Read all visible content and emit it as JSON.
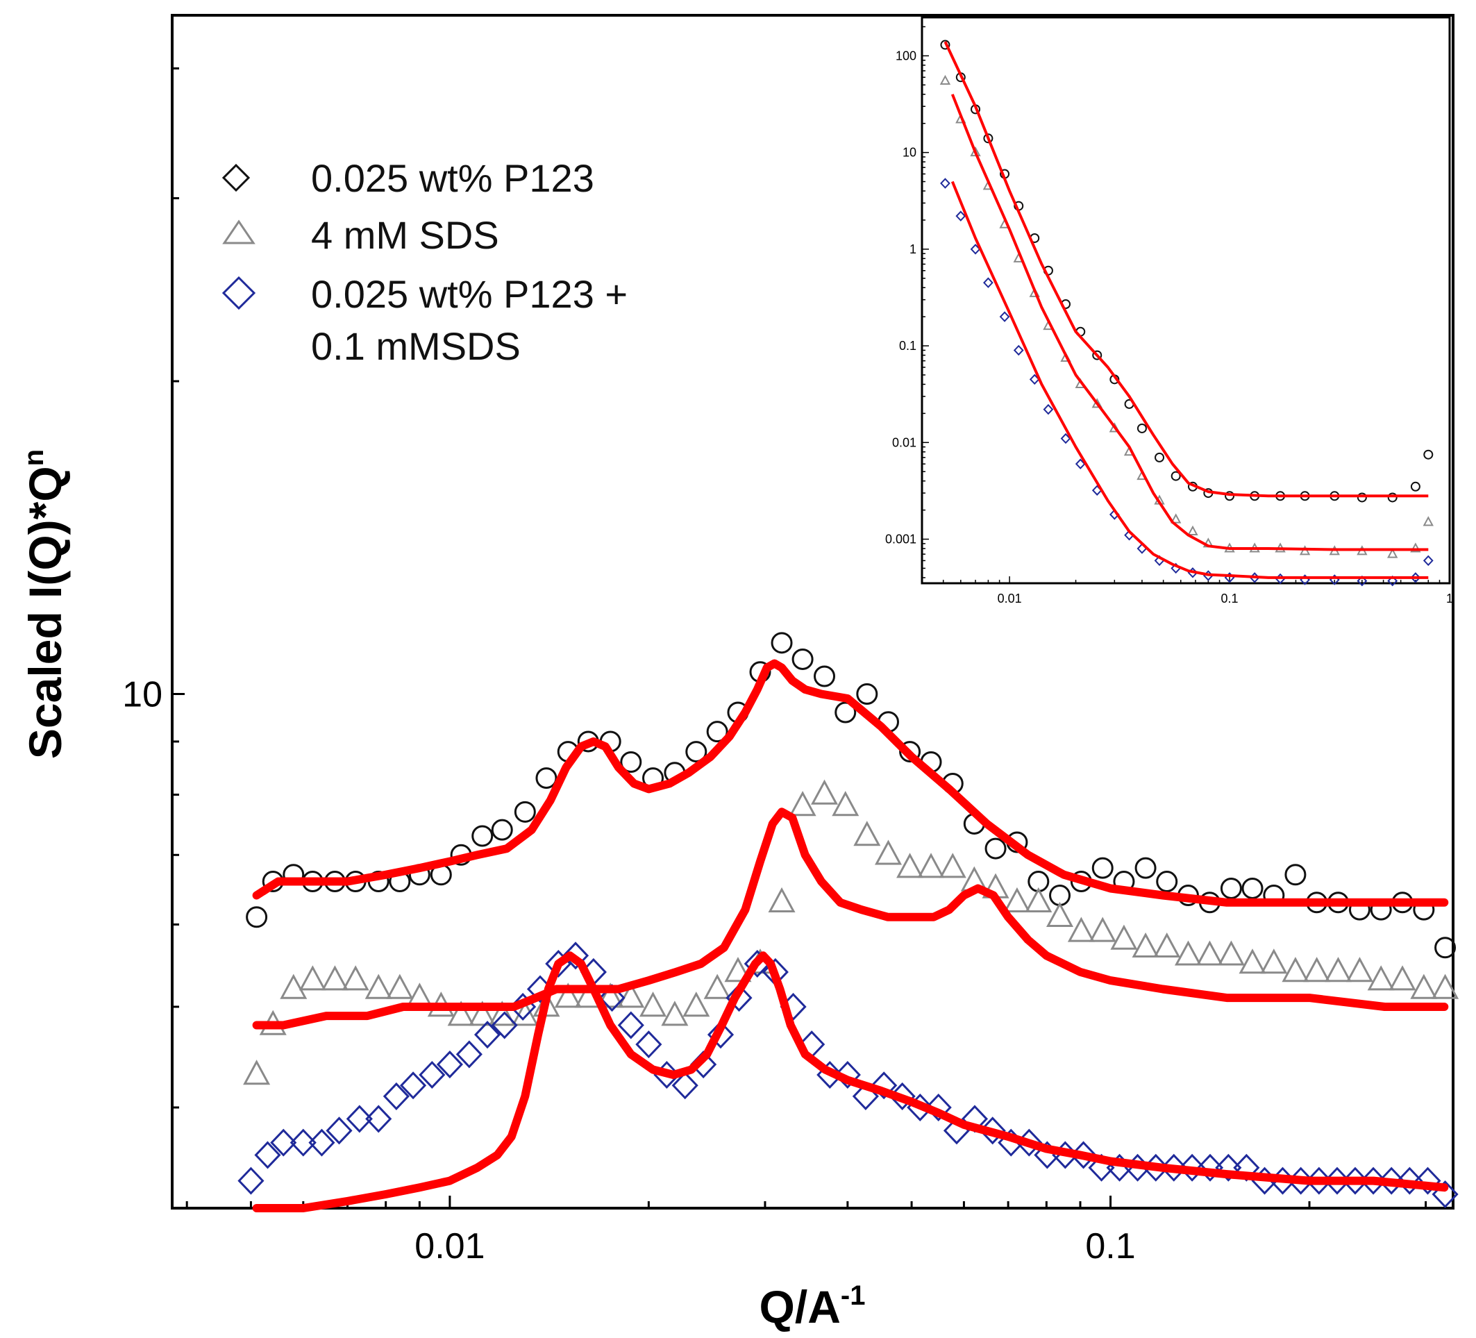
{
  "chart_data": {
    "type": "scatter",
    "title": "",
    "xlabel": "Q/A",
    "xlabel_sup": "-1",
    "ylabel": "Scaled I(Q)*Q",
    "ylabel_sup": "n",
    "x_scale": "log",
    "y_scale": "log",
    "xlim": [
      0.0038,
      0.33
    ],
    "ylim": [
      3.2,
      45
    ],
    "x_tick_labels": [
      {
        "value": 0.01,
        "label": "0.01"
      },
      {
        "value": 0.1,
        "label": "0.1"
      }
    ],
    "y_tick_labels": [
      {
        "value": 10,
        "label": "10"
      }
    ],
    "legend": {
      "position": "top-left",
      "entries": [
        {
          "series": "p123",
          "text": "0.025 wt% P123"
        },
        {
          "series": "sds",
          "text": "4 mM SDS"
        },
        {
          "series": "mix",
          "text": "0.025 wt% P123 +",
          "text2": "0.1 mMSDS"
        }
      ]
    },
    "series": [
      {
        "id": "p123",
        "name": "0.025 wt% P123",
        "marker": "circle",
        "color": "#111111",
        "x": [
          0.0051,
          0.0054,
          0.0058,
          0.0062,
          0.0067,
          0.0072,
          0.0078,
          0.0084,
          0.009,
          0.0097,
          0.0104,
          0.0112,
          0.012,
          0.013,
          0.014,
          0.0151,
          0.0162,
          0.0175,
          0.0188,
          0.0203,
          0.0219,
          0.0236,
          0.0254,
          0.0273,
          0.0295,
          0.0318,
          0.0342,
          0.0369,
          0.0397,
          0.0428,
          0.0461,
          0.0497,
          0.0535,
          0.0577,
          0.0622,
          0.067,
          0.0722,
          0.0778,
          0.0838,
          0.0903,
          0.0973,
          0.1048,
          0.113,
          0.1217,
          0.1311,
          0.1413,
          0.1523,
          0.164,
          0.1767,
          0.1905,
          0.2052,
          0.2211,
          0.2383,
          0.2567,
          0.2766,
          0.298,
          0.321
        ],
        "y": [
          6.1,
          6.6,
          6.7,
          6.6,
          6.6,
          6.6,
          6.6,
          6.6,
          6.7,
          6.7,
          7.0,
          7.3,
          7.4,
          7.7,
          8.3,
          8.8,
          9.0,
          9.0,
          8.6,
          8.3,
          8.4,
          8.8,
          9.2,
          9.6,
          10.5,
          11.2,
          10.8,
          10.4,
          9.6,
          10.0,
          9.4,
          8.8,
          8.6,
          8.2,
          7.5,
          7.1,
          7.2,
          6.6,
          6.4,
          6.6,
          6.8,
          6.6,
          6.8,
          6.6,
          6.4,
          6.3,
          6.5,
          6.5,
          6.4,
          6.7,
          6.3,
          6.3,
          6.2,
          6.2,
          6.3,
          6.2,
          5.7
        ],
        "fit": {
          "x": [
            0.0051,
            0.0055,
            0.006,
            0.007,
            0.008,
            0.009,
            0.01,
            0.011,
            0.0122,
            0.0133,
            0.0142,
            0.015,
            0.0158,
            0.0165,
            0.0172,
            0.018,
            0.019,
            0.02,
            0.0215,
            0.023,
            0.0248,
            0.0265,
            0.028,
            0.0292,
            0.0302,
            0.031,
            0.0318,
            0.033,
            0.0345,
            0.0365,
            0.04,
            0.045,
            0.05,
            0.057,
            0.065,
            0.075,
            0.085,
            0.1,
            0.12,
            0.15,
            0.19,
            0.24,
            0.32
          ],
          "y": [
            6.4,
            6.6,
            6.6,
            6.6,
            6.7,
            6.8,
            6.9,
            7.0,
            7.1,
            7.4,
            7.9,
            8.5,
            8.9,
            9.0,
            8.9,
            8.5,
            8.2,
            8.1,
            8.2,
            8.4,
            8.7,
            9.1,
            9.6,
            10.1,
            10.6,
            10.7,
            10.6,
            10.3,
            10.1,
            10.0,
            9.9,
            9.3,
            8.7,
            8.1,
            7.5,
            7.0,
            6.7,
            6.5,
            6.4,
            6.3,
            6.3,
            6.3,
            6.3
          ]
        }
      },
      {
        "id": "sds",
        "name": "4 mM SDS",
        "marker": "triangle",
        "color": "#8a8a8a",
        "x": [
          0.0051,
          0.0054,
          0.0058,
          0.0062,
          0.0067,
          0.0072,
          0.0078,
          0.0084,
          0.009,
          0.0097,
          0.0104,
          0.0112,
          0.012,
          0.013,
          0.014,
          0.0151,
          0.0162,
          0.0175,
          0.0188,
          0.0203,
          0.0219,
          0.0236,
          0.0254,
          0.0273,
          0.0295,
          0.0318,
          0.0342,
          0.0369,
          0.0397,
          0.0428,
          0.0461,
          0.0497,
          0.0535,
          0.0577,
          0.0622,
          0.067,
          0.0722,
          0.0778,
          0.0838,
          0.0903,
          0.0973,
          0.1048,
          0.113,
          0.1217,
          0.1311,
          0.1413,
          0.1523,
          0.164,
          0.1767,
          0.1905,
          0.2052,
          0.2211,
          0.2383,
          0.2567,
          0.2766,
          0.298,
          0.321
        ],
        "y": [
          4.3,
          4.8,
          5.2,
          5.3,
          5.3,
          5.3,
          5.2,
          5.2,
          5.1,
          5.0,
          4.9,
          4.9,
          4.9,
          4.9,
          5.0,
          5.1,
          5.1,
          5.1,
          5.1,
          5.0,
          4.9,
          5.0,
          5.2,
          5.4,
          5.5,
          6.3,
          7.8,
          8.0,
          7.8,
          7.3,
          7.0,
          6.8,
          6.8,
          6.8,
          6.6,
          6.5,
          6.3,
          6.3,
          6.1,
          5.9,
          5.9,
          5.8,
          5.7,
          5.7,
          5.6,
          5.6,
          5.6,
          5.5,
          5.5,
          5.4,
          5.4,
          5.4,
          5.4,
          5.3,
          5.3,
          5.2,
          5.2
        ],
        "fit": {
          "x": [
            0.0051,
            0.0056,
            0.0065,
            0.0075,
            0.0085,
            0.0095,
            0.0105,
            0.0115,
            0.0125,
            0.0135,
            0.0145,
            0.0155,
            0.0165,
            0.018,
            0.02,
            0.022,
            0.024,
            0.026,
            0.028,
            0.0295,
            0.0308,
            0.0318,
            0.033,
            0.0345,
            0.0365,
            0.039,
            0.042,
            0.046,
            0.05,
            0.054,
            0.057,
            0.06,
            0.063,
            0.0665,
            0.07,
            0.075,
            0.08,
            0.09,
            0.1,
            0.12,
            0.15,
            0.2,
            0.26,
            0.32
          ],
          "y": [
            4.8,
            4.8,
            4.9,
            4.9,
            5.0,
            5.0,
            5.0,
            5.0,
            5.0,
            5.1,
            5.2,
            5.2,
            5.2,
            5.2,
            5.3,
            5.4,
            5.5,
            5.7,
            6.2,
            6.9,
            7.5,
            7.7,
            7.6,
            7.0,
            6.6,
            6.3,
            6.2,
            6.1,
            6.1,
            6.1,
            6.2,
            6.4,
            6.5,
            6.4,
            6.1,
            5.8,
            5.6,
            5.4,
            5.3,
            5.2,
            5.1,
            5.1,
            5.0,
            5.0
          ]
        }
      },
      {
        "id": "mix",
        "name": "0.025 wt% P123 + 0.1 mMSDS",
        "marker": "diamond",
        "color": "#1f2a9a",
        "x": [
          0.005,
          0.0053,
          0.0056,
          0.006,
          0.0064,
          0.0068,
          0.0073,
          0.0078,
          0.0083,
          0.0088,
          0.0094,
          0.01,
          0.0107,
          0.0114,
          0.0121,
          0.0129,
          0.0137,
          0.0146,
          0.0155,
          0.0165,
          0.0176,
          0.0188,
          0.02,
          0.0213,
          0.0227,
          0.0242,
          0.0257,
          0.0274,
          0.0292,
          0.0311,
          0.0331,
          0.0353,
          0.0376,
          0.04,
          0.0426,
          0.0454,
          0.0484,
          0.0515,
          0.0549,
          0.0585,
          0.0623,
          0.0663,
          0.0707,
          0.0753,
          0.0802,
          0.0854,
          0.091,
          0.0969,
          0.1032,
          0.1099,
          0.1171,
          0.1247,
          0.1329,
          0.1415,
          0.1508,
          0.1606,
          0.1711,
          0.1822,
          0.1941,
          0.2068,
          0.2203,
          0.2346,
          0.2499,
          0.2662,
          0.2836,
          0.3021,
          0.321
        ],
        "y": [
          3.4,
          3.6,
          3.7,
          3.7,
          3.7,
          3.8,
          3.9,
          3.9,
          4.1,
          4.2,
          4.3,
          4.4,
          4.5,
          4.7,
          4.8,
          5.0,
          5.2,
          5.5,
          5.6,
          5.4,
          5.1,
          4.8,
          4.6,
          4.3,
          4.2,
          4.4,
          4.7,
          5.1,
          5.5,
          5.4,
          5.0,
          4.6,
          4.3,
          4.3,
          4.1,
          4.2,
          4.1,
          4.0,
          4.0,
          3.8,
          3.9,
          3.8,
          3.7,
          3.7,
          3.6,
          3.6,
          3.6,
          3.5,
          3.5,
          3.5,
          3.5,
          3.5,
          3.5,
          3.5,
          3.5,
          3.5,
          3.4,
          3.4,
          3.4,
          3.4,
          3.4,
          3.4,
          3.4,
          3.4,
          3.4,
          3.4,
          3.3
        ],
        "fit": {
          "x": [
            0.0051,
            0.0055,
            0.006,
            0.007,
            0.008,
            0.009,
            0.01,
            0.011,
            0.0118,
            0.0124,
            0.013,
            0.0136,
            0.0141,
            0.0146,
            0.0152,
            0.0158,
            0.0165,
            0.0175,
            0.0188,
            0.0203,
            0.0218,
            0.0232,
            0.0245,
            0.0258,
            0.027,
            0.028,
            0.029,
            0.0298,
            0.0306,
            0.0316,
            0.0328,
            0.0345,
            0.037,
            0.04,
            0.045,
            0.05,
            0.055,
            0.06,
            0.07,
            0.08,
            0.09,
            0.1,
            0.12,
            0.15,
            0.2,
            0.25,
            0.32
          ],
          "y": [
            3.2,
            3.2,
            3.2,
            3.25,
            3.3,
            3.35,
            3.4,
            3.5,
            3.6,
            3.75,
            4.1,
            4.7,
            5.2,
            5.5,
            5.6,
            5.5,
            5.2,
            4.8,
            4.5,
            4.35,
            4.3,
            4.35,
            4.5,
            4.8,
            5.1,
            5.3,
            5.5,
            5.6,
            5.5,
            5.2,
            4.8,
            4.5,
            4.35,
            4.25,
            4.15,
            4.05,
            3.95,
            3.85,
            3.75,
            3.65,
            3.6,
            3.55,
            3.5,
            3.45,
            3.4,
            3.4,
            3.35
          ]
        }
      }
    ],
    "inset": {
      "type": "scatter",
      "x_scale": "log",
      "y_scale": "log",
      "xlim": [
        0.004,
        1
      ],
      "ylim": [
        0.00035,
        250
      ],
      "x_tick_labels": [
        {
          "value": 0.01,
          "label": "0.01"
        },
        {
          "value": 0.1,
          "label": "0.1"
        },
        {
          "value": 1,
          "label": "1"
        }
      ],
      "y_tick_labels": [
        {
          "value": 100,
          "label": "100"
        },
        {
          "value": 10,
          "label": "10"
        },
        {
          "value": 1,
          "label": "1"
        },
        {
          "value": 0.1,
          "label": "0.1"
        },
        {
          "value": 0.01,
          "label": "0.01"
        },
        {
          "value": 0.001,
          "label": "0.001"
        }
      ],
      "series": [
        {
          "id": "p123",
          "marker": "circle",
          "color": "#111111",
          "x": [
            0.0051,
            0.006,
            0.007,
            0.008,
            0.0095,
            0.011,
            0.013,
            0.015,
            0.018,
            0.021,
            0.025,
            0.03,
            0.035,
            0.04,
            0.048,
            0.057,
            0.068,
            0.08,
            0.1,
            0.13,
            0.17,
            0.22,
            0.3,
            0.4,
            0.55,
            0.7,
            0.8
          ],
          "y": [
            130,
            60,
            28,
            14,
            6,
            2.8,
            1.3,
            0.6,
            0.27,
            0.14,
            0.08,
            0.045,
            0.025,
            0.014,
            0.007,
            0.0045,
            0.0035,
            0.003,
            0.0028,
            0.0028,
            0.0028,
            0.0028,
            0.0028,
            0.0027,
            0.0027,
            0.0035,
            0.0075
          ]
        },
        {
          "id": "sds",
          "marker": "triangle",
          "color": "#8a8a8a",
          "x": [
            0.0051,
            0.006,
            0.007,
            0.008,
            0.0095,
            0.011,
            0.013,
            0.015,
            0.018,
            0.021,
            0.025,
            0.03,
            0.035,
            0.04,
            0.048,
            0.057,
            0.068,
            0.08,
            0.1,
            0.13,
            0.17,
            0.22,
            0.3,
            0.4,
            0.55,
            0.7,
            0.8
          ],
          "y": [
            55,
            22,
            10,
            4.5,
            1.8,
            0.8,
            0.35,
            0.16,
            0.075,
            0.04,
            0.025,
            0.014,
            0.008,
            0.0045,
            0.0025,
            0.0016,
            0.0012,
            0.0009,
            0.0008,
            0.0008,
            0.0008,
            0.00075,
            0.00075,
            0.00075,
            0.0007,
            0.0008,
            0.0015
          ]
        },
        {
          "id": "mix",
          "marker": "diamond",
          "color": "#1f2a9a",
          "x": [
            0.0051,
            0.006,
            0.007,
            0.008,
            0.0095,
            0.011,
            0.013,
            0.015,
            0.018,
            0.021,
            0.025,
            0.03,
            0.035,
            0.04,
            0.048,
            0.057,
            0.068,
            0.08,
            0.1,
            0.13,
            0.17,
            0.22,
            0.3,
            0.4,
            0.55,
            0.7,
            0.8
          ],
          "y": [
            4.8,
            2.2,
            1.0,
            0.45,
            0.2,
            0.09,
            0.045,
            0.022,
            0.011,
            0.006,
            0.0032,
            0.0018,
            0.0011,
            0.0008,
            0.0006,
            0.0005,
            0.00045,
            0.00042,
            0.0004,
            0.0004,
            0.00039,
            0.00038,
            0.00038,
            0.00037,
            0.00037,
            0.0004,
            0.0006
          ]
        }
      ],
      "fits": [
        {
          "series": "p123",
          "x": [
            0.0051,
            0.007,
            0.01,
            0.014,
            0.02,
            0.028,
            0.035,
            0.045,
            0.055,
            0.065,
            0.08,
            0.1,
            0.15,
            0.3,
            0.8
          ],
          "y": [
            140,
            30,
            4,
            0.7,
            0.14,
            0.06,
            0.03,
            0.012,
            0.006,
            0.0038,
            0.0031,
            0.0029,
            0.0028,
            0.0028,
            0.0028
          ]
        },
        {
          "series": "sds",
          "x": [
            0.0055,
            0.007,
            0.01,
            0.014,
            0.02,
            0.028,
            0.035,
            0.045,
            0.055,
            0.065,
            0.08,
            0.1,
            0.15,
            0.3,
            0.8
          ],
          "y": [
            40,
            10,
            1.6,
            0.25,
            0.05,
            0.018,
            0.009,
            0.003,
            0.0015,
            0.0011,
            0.00085,
            0.0008,
            0.0008,
            0.00078,
            0.00078
          ]
        },
        {
          "series": "mix",
          "x": [
            0.0055,
            0.007,
            0.01,
            0.014,
            0.02,
            0.028,
            0.035,
            0.045,
            0.055,
            0.065,
            0.08,
            0.1,
            0.15,
            0.3,
            0.8
          ],
          "y": [
            5,
            1.3,
            0.22,
            0.04,
            0.009,
            0.0025,
            0.0012,
            0.0007,
            0.00055,
            0.00047,
            0.00043,
            0.00042,
            0.0004,
            0.0004,
            0.0004
          ]
        }
      ]
    }
  }
}
